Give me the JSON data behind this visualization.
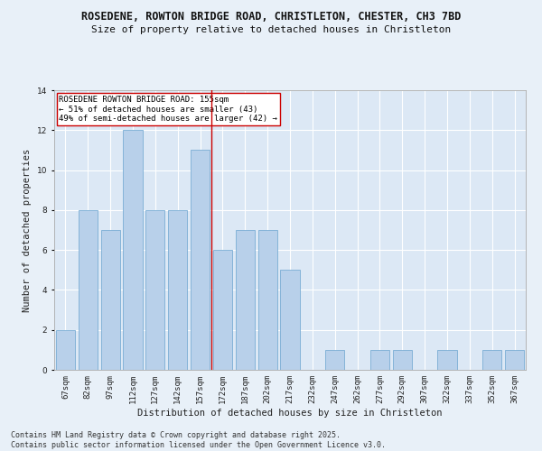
{
  "title_line1": "ROSEDENE, ROWTON BRIDGE ROAD, CHRISTLETON, CHESTER, CH3 7BD",
  "title_line2": "Size of property relative to detached houses in Christleton",
  "xlabel": "Distribution of detached houses by size in Christleton",
  "ylabel": "Number of detached properties",
  "categories": [
    "67sqm",
    "82sqm",
    "97sqm",
    "112sqm",
    "127sqm",
    "142sqm",
    "157sqm",
    "172sqm",
    "187sqm",
    "202sqm",
    "217sqm",
    "232sqm",
    "247sqm",
    "262sqm",
    "277sqm",
    "292sqm",
    "307sqm",
    "322sqm",
    "337sqm",
    "352sqm",
    "367sqm"
  ],
  "values": [
    2,
    8,
    7,
    12,
    8,
    8,
    11,
    6,
    7,
    7,
    5,
    0,
    1,
    0,
    1,
    1,
    0,
    1,
    0,
    1,
    1
  ],
  "bar_color": "#b8d0ea",
  "bar_edge_color": "#7aadd4",
  "marker_index": 6,
  "marker_label_line1": "ROSEDENE ROWTON BRIDGE ROAD: 155sqm",
  "marker_label_line2": "← 51% of detached houses are smaller (43)",
  "marker_label_line3": "49% of semi-detached houses are larger (42) →",
  "marker_color": "#cc0000",
  "ylim": [
    0,
    14
  ],
  "yticks": [
    0,
    2,
    4,
    6,
    8,
    10,
    12,
    14
  ],
  "footnote_line1": "Contains HM Land Registry data © Crown copyright and database right 2025.",
  "footnote_line2": "Contains public sector information licensed under the Open Government Licence v3.0.",
  "background_color": "#e8f0f8",
  "plot_bg_color": "#dce8f5",
  "grid_color": "#ffffff",
  "title_fontsize": 8.5,
  "subtitle_fontsize": 8,
  "axis_label_fontsize": 7.5,
  "tick_fontsize": 6.5,
  "annotation_fontsize": 6.5,
  "footnote_fontsize": 6
}
